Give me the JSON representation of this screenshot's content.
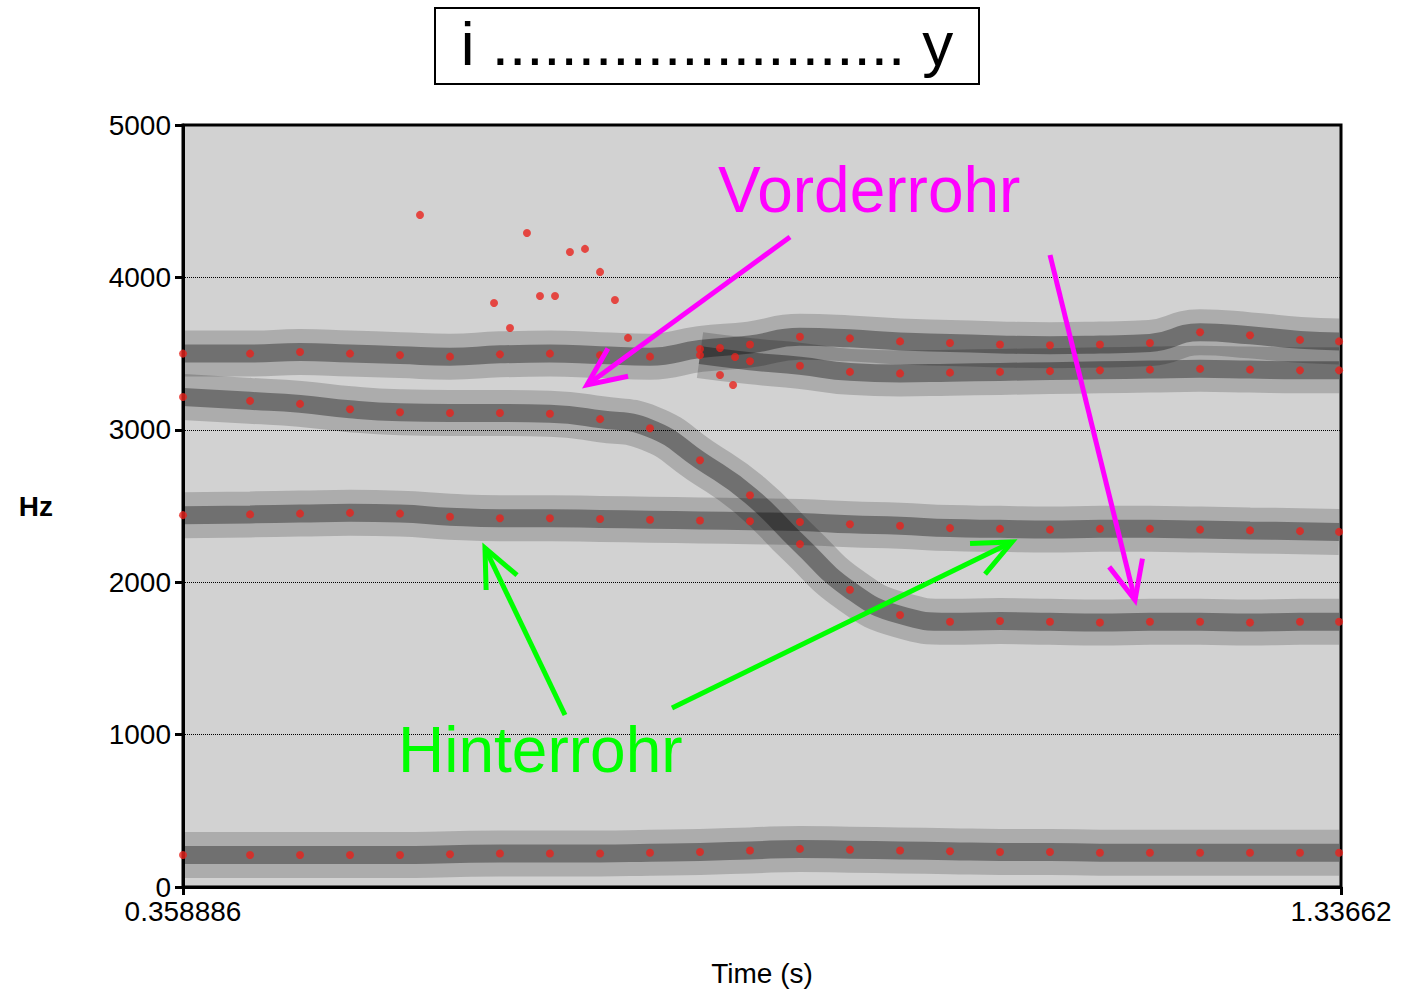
{
  "chart_data": {
    "type": "scatter",
    "title": "i ........................ y",
    "x_label": "Time (s)",
    "y_label": "Hz",
    "xlim": [
      0.358886,
      1.33662
    ],
    "xticks": [
      0.358886,
      1.33662
    ],
    "ylim": [
      0,
      5000
    ],
    "yticks": [
      0,
      1000,
      2000,
      3000,
      4000,
      5000
    ],
    "grid": true,
    "x": [
      0.3589,
      0.4155,
      0.4577,
      0.4999,
      0.5421,
      0.5843,
      0.6265,
      0.6687,
      0.711,
      0.7532,
      0.7954,
      0.8376,
      0.8798,
      0.922,
      0.9643,
      1.0065,
      1.0487,
      1.0909,
      1.1331,
      1.1753,
      1.2176,
      1.2598,
      1.302,
      1.335
    ],
    "series": [
      {
        "color": "#e8231d",
        "marker": "circle",
        "values": [
          210,
          210,
          210,
          210,
          210,
          215,
          220,
          220,
          220,
          225,
          230,
          240,
          250,
          245,
          240,
          235,
          230,
          230,
          225,
          225,
          225,
          225,
          225,
          225
        ]
      },
      {
        "color": "#e8231d",
        "marker": "circle",
        "values": [
          2440,
          2445,
          2450,
          2455,
          2450,
          2430,
          2420,
          2420,
          2415,
          2410,
          2405,
          2400,
          2395,
          2380,
          2370,
          2355,
          2350,
          2345,
          2350,
          2350,
          2345,
          2340,
          2335,
          2330
        ]
      },
      {
        "color": "#e8231d",
        "marker": "circle",
        "values": [
          3215,
          3190,
          3170,
          3135,
          3115,
          3110,
          3110,
          3105,
          3070,
          3010,
          2800,
          2570,
          2250,
          1950,
          1785,
          1740,
          1745,
          1740,
          1735,
          1740,
          1740,
          1735,
          1740,
          1740
        ]
      },
      {
        "color": "#e8231d",
        "marker": "circle",
        "values": [
          3500,
          3500,
          3510,
          3500,
          3490,
          3480,
          3495,
          3500,
          3490,
          3480,
          3530,
          3560,
          3610,
          3600,
          3580,
          3570,
          3560,
          3555,
          3560,
          3570,
          3640,
          3620,
          3590,
          3580
        ]
      },
      {
        "color": "#e8231d",
        "marker": "circle",
        "values": [
          null,
          null,
          null,
          null,
          null,
          null,
          null,
          null,
          null,
          null,
          3490,
          3450,
          3420,
          3380,
          3370,
          3375,
          3380,
          3385,
          3390,
          3395,
          3400,
          3395,
          3390,
          3390
        ]
      },
      {
        "color": "#e8231d",
        "marker": "circle",
        "x": [
          0.559,
          0.6493,
          0.6215,
          0.635,
          0.6603,
          0.673,
          0.6856,
          0.6983,
          0.711,
          0.7236,
          0.7346,
          0.8123,
          0.825,
          0.8123,
          0.8233
        ],
        "values": [
          4410,
          4291,
          3832,
          3668,
          3878,
          3878,
          4167,
          4187,
          4036,
          3852,
          3603,
          3537,
          3478,
          3360,
          3294
        ]
      }
    ],
    "annotations": [
      {
        "text": "Vorderrohr",
        "color": "#ff00ff"
      },
      {
        "text": "Hinterrohr",
        "color": "#00ff00"
      }
    ]
  }
}
